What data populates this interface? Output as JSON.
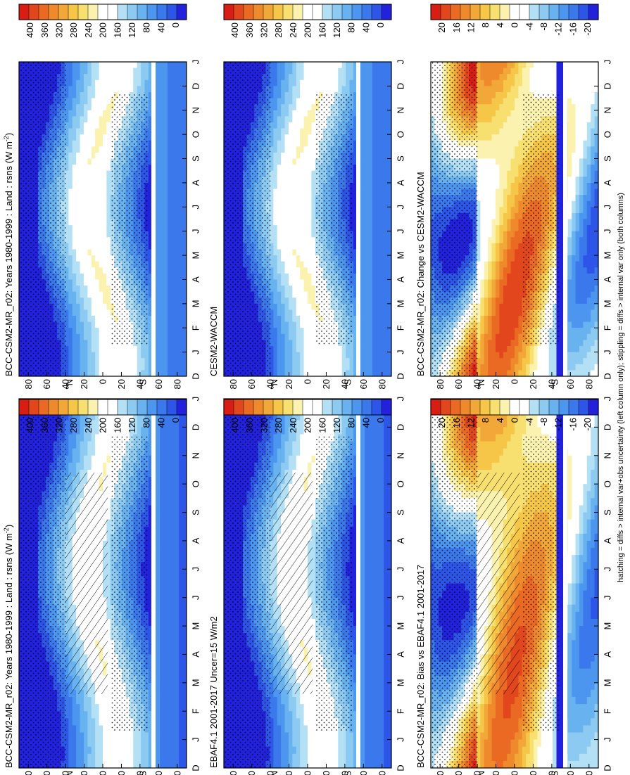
{
  "footnote": "hatching = diffs > internal var+obs uncertainty (left column only); stippling = diffs > internal var only (both columns)",
  "colors": {
    "abs_scale": [
      "#2222dd",
      "#2d55e8",
      "#3a78ec",
      "#4d96ef",
      "#68b2f0",
      "#8ccaf2",
      "#b4e0f6",
      "#ffffff",
      "#ffffff",
      "#fbf2b0",
      "#f8e070",
      "#f5c648",
      "#f2a838",
      "#ee8a2c",
      "#ea6a24",
      "#e2461c",
      "#d81e14"
    ],
    "diff_scale": [
      "#2222dd",
      "#2d55e8",
      "#3a78ec",
      "#4d96ef",
      "#68b2f0",
      "#8ccaf2",
      "#b4e0f6",
      "#ffffff",
      "#ffffff",
      "#fbf2b0",
      "#f8e070",
      "#f5c648",
      "#f2a838",
      "#ee8a2c",
      "#ea6a24",
      "#e2461c",
      "#d81e14"
    ]
  },
  "chart_data": [
    {
      "type": "heatmap",
      "title": "BCC-CSM2-MR_r02: Years 1980-1999 : Land : rsns (W m",
      "title_sup": "-2",
      "title_end": ")",
      "months": [
        "J",
        "F",
        "M",
        "A",
        "M",
        "J",
        "J",
        "A",
        "S",
        "O",
        "N",
        "D",
        "J"
      ],
      "month_start": "D",
      "lat_ticks": [
        "80",
        "60",
        "40",
        "20",
        "0",
        "20",
        "40",
        "60",
        "80"
      ],
      "lat_unit_n": "°N",
      "lat_unit_s": "°S",
      "colorbar_ticks": [
        "400",
        "360",
        "320",
        "280",
        "240",
        "200",
        "160",
        "120",
        "80",
        "40",
        "0"
      ],
      "scale": "abs",
      "hatching": true
    },
    {
      "type": "heatmap",
      "title": "EBAF4.1 2001-2017 Uncer=15 W/m2",
      "months": [
        "J",
        "F",
        "M",
        "A",
        "M",
        "J",
        "J",
        "A",
        "S",
        "O",
        "N",
        "D",
        "J"
      ],
      "month_start": "D",
      "lat_ticks": [
        "80",
        "60",
        "40",
        "20",
        "0",
        "20",
        "40",
        "60",
        "80"
      ],
      "lat_unit_n": "°N",
      "lat_unit_s": "°S",
      "colorbar_ticks": [
        "400",
        "360",
        "320",
        "280",
        "240",
        "200",
        "160",
        "120",
        "80",
        "40",
        "0"
      ],
      "scale": "abs",
      "hatching": true
    },
    {
      "type": "heatmap",
      "title": "BCC-CSM2-MR_r02: Bias vs EBAF4.1 2001-2017",
      "months": [
        "J",
        "F",
        "M",
        "A",
        "M",
        "J",
        "J",
        "A",
        "S",
        "O",
        "N",
        "D",
        "J"
      ],
      "month_start": "D",
      "lat_ticks": [
        "80",
        "60",
        "40",
        "20",
        "0",
        "20",
        "40",
        "60",
        "80"
      ],
      "lat_unit_n": "°N",
      "lat_unit_s": "°S",
      "colorbar_ticks": [
        "20",
        "16",
        "12",
        "8",
        "4",
        "0",
        "-4",
        "-8",
        "-12",
        "-16",
        "-20"
      ],
      "scale": "diff",
      "hatching": true
    },
    {
      "type": "heatmap",
      "title": "BCC-CSM2-MR_r02: Years 1980-1999 : Land : rsns (W m",
      "title_sup": "-2",
      "title_end": ")",
      "months": [
        "J",
        "F",
        "M",
        "A",
        "M",
        "J",
        "J",
        "A",
        "S",
        "O",
        "N",
        "D",
        "J"
      ],
      "month_start": "D",
      "lat_ticks": [
        "80",
        "60",
        "40",
        "20",
        "0",
        "20",
        "40",
        "60",
        "80"
      ],
      "lat_unit_n": "°N",
      "lat_unit_s": "°S",
      "colorbar_ticks": [
        "400",
        "360",
        "320",
        "280",
        "240",
        "200",
        "160",
        "120",
        "80",
        "40",
        "0"
      ],
      "scale": "abs",
      "hatching": false
    },
    {
      "type": "heatmap",
      "title": "CESM2-WACCM",
      "months": [
        "J",
        "F",
        "M",
        "A",
        "M",
        "J",
        "J",
        "A",
        "S",
        "O",
        "N",
        "D",
        "J"
      ],
      "month_start": "D",
      "lat_ticks": [
        "80",
        "60",
        "40",
        "20",
        "0",
        "20",
        "40",
        "60",
        "80"
      ],
      "lat_unit_n": "°N",
      "lat_unit_s": "°S",
      "colorbar_ticks": [
        "400",
        "360",
        "320",
        "280",
        "240",
        "200",
        "160",
        "120",
        "80",
        "40",
        "0"
      ],
      "scale": "abs",
      "hatching": false
    },
    {
      "type": "heatmap",
      "title": "BCC-CSM2-MR_r02: Change vs CESM2-WACCM",
      "months": [
        "J",
        "F",
        "M",
        "A",
        "M",
        "J",
        "J",
        "A",
        "S",
        "O",
        "N",
        "D",
        "J"
      ],
      "month_start": "D",
      "lat_ticks": [
        "80",
        "60",
        "40",
        "20",
        "0",
        "20",
        "40",
        "60",
        "80"
      ],
      "lat_unit_n": "°N",
      "lat_unit_s": "°S",
      "colorbar_ticks": [
        "20",
        "16",
        "12",
        "8",
        "4",
        "0",
        "-4",
        "-8",
        "-12",
        "-16",
        "-20"
      ],
      "scale": "diff",
      "hatching": false
    }
  ]
}
